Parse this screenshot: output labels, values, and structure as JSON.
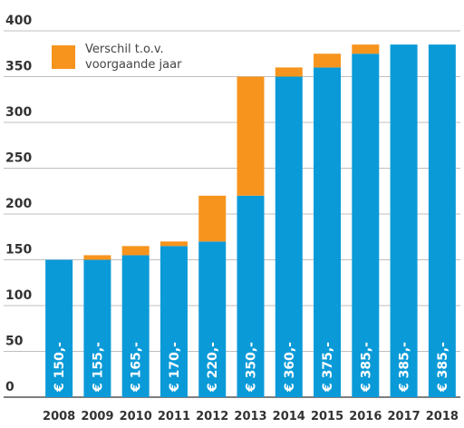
{
  "chart_data": {
    "type": "bar",
    "stacked": true,
    "categories": [
      "2008",
      "2009",
      "2010",
      "2011",
      "2012",
      "2013",
      "2014",
      "2015",
      "2016",
      "2017",
      "2018"
    ],
    "series": [
      {
        "values": [
          150,
          150,
          155,
          165,
          170,
          220,
          350,
          360,
          375,
          385,
          385
        ],
        "color": "#0a9ad8"
      },
      {
        "name": "Verschil t.o.v. voorgaande jaar",
        "values": [
          0,
          5,
          10,
          5,
          50,
          130,
          10,
          15,
          10,
          0,
          0
        ],
        "color": "#f7941d"
      }
    ],
    "value_labels": [
      "€ 150,-",
      "€ 155,-",
      "€ 165,-",
      "€ 170,-",
      "€ 220,-",
      "€ 350,-",
      "€ 360,-",
      "€ 375,-",
      "€ 385,-",
      "€ 385,-",
      "€ 385,-"
    ],
    "yticks": [
      "0",
      "50",
      "100",
      "150",
      "200",
      "250",
      "300",
      "350",
      "400"
    ],
    "ylim": [
      0,
      400
    ],
    "grid": true,
    "legend": {
      "position": "top-left",
      "line1": "Verschil  t.o.v.",
      "line2": "voorgaande jaar"
    }
  }
}
